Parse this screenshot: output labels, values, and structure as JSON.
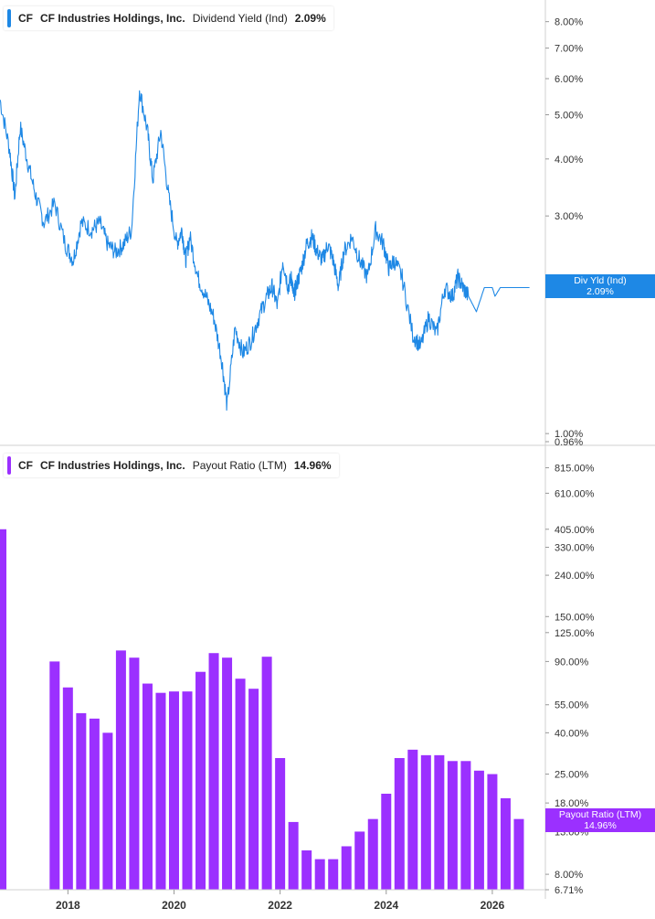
{
  "colors": {
    "yield": "#1e88e5",
    "payout": "#9b30ff",
    "grid": "#e6e6e6",
    "axis_text": "#333333"
  },
  "legend_top": {
    "ticker": "CF",
    "company": "CF Industries Holdings, Inc.",
    "metric": "Dividend Yield (Ind)",
    "value": "2.09%"
  },
  "legend_bottom": {
    "ticker": "CF",
    "company": "CF Industries Holdings, Inc.",
    "metric": "Payout Ratio (LTM)",
    "value": "14.96%"
  },
  "tag_top": {
    "label": "Div Yld (Ind)",
    "value": "2.09%"
  },
  "tag_bottom": {
    "label": "Payout Ratio (LTM)",
    "value": "14.96%"
  },
  "chart_data": [
    {
      "type": "line",
      "scale": "log",
      "ylim": [
        0.96,
        8.6
      ],
      "xlim": [
        2016.72,
        2027.0
      ],
      "yticks": [
        "8.00%",
        "7.00%",
        "6.00%",
        "5.00%",
        "4.00%",
        "3.00%",
        "2.09%",
        "1.00%",
        "0.96%"
      ],
      "series": [
        {
          "x": [
            2016.72,
            2016.9,
            2017.0,
            2017.1,
            2017.25,
            2017.4,
            2017.55,
            2017.75,
            2017.95,
            2018.1,
            2018.25,
            2018.45,
            2018.6,
            2018.75,
            2018.9,
            2019.05,
            2019.2,
            2019.35,
            2019.5,
            2019.6,
            2019.75,
            2019.9,
            2020.05,
            2020.15,
            2020.22,
            2020.3,
            2020.45,
            2020.6,
            2020.75,
            2020.9,
            2021.0,
            2021.15,
            2021.3,
            2021.45,
            2021.6,
            2021.75,
            2021.85,
            2021.95,
            2022.05,
            2022.15,
            2022.22,
            2022.25,
            2022.3,
            2022.4,
            2022.5,
            2022.6,
            2022.7,
            2022.8,
            2022.9,
            2023.0,
            2023.1,
            2023.2,
            2023.35,
            2023.5,
            2023.65,
            2023.8,
            2023.95,
            2024.05,
            2024.15,
            2024.3,
            2024.5,
            2024.65,
            2024.8,
            2024.95,
            2025.1,
            2025.25,
            2025.35,
            2025.45,
            2025.55,
            2025.7,
            2025.85,
            2026.0,
            2026.05,
            2026.15,
            2026.25,
            2026.35,
            2026.45,
            2026.55,
            2026.62,
            2026.7
          ],
          "y": [
            5.4,
            4.2,
            3.3,
            4.7,
            3.9,
            3.3,
            2.9,
            3.2,
            2.6,
            2.4,
            2.9,
            2.8,
            2.9,
            2.6,
            2.5,
            2.6,
            2.8,
            5.7,
            4.6,
            3.6,
            4.6,
            3.3,
            2.6,
            2.8,
            2.4,
            2.7,
            2.2,
            2.0,
            1.8,
            1.45,
            1.15,
            1.7,
            1.5,
            1.6,
            1.8,
            2.0,
            2.1,
            1.9,
            2.4,
            2.1,
            2.2,
            2.0,
            2.1,
            2.3,
            2.6,
            2.7,
            2.5,
            2.4,
            2.6,
            2.4,
            2.1,
            2.5,
            2.7,
            2.4,
            2.2,
            2.8,
            2.6,
            2.3,
            2.4,
            2.2,
            1.65,
            1.55,
            1.8,
            1.65,
            2.09,
            2.0,
            2.2,
            2.09,
            2.0,
            1.85,
            2.09,
            2.09,
            2.0,
            2.09,
            2.09,
            2.09,
            2.09,
            2.09,
            2.09,
            2.09
          ]
        }
      ]
    },
    {
      "type": "bar",
      "scale": "log",
      "ylim": [
        6.71,
        900
      ],
      "xlim": [
        2016.72,
        2027.0
      ],
      "yticks": [
        "815.00%",
        "610.00%",
        "405.00%",
        "330.00%",
        "240.00%",
        "150.00%",
        "125.00%",
        "90.00%",
        "55.00%",
        "40.00%",
        "25.00%",
        "18.00%",
        "14.96%",
        "13.00%",
        "8.00%",
        "6.71%"
      ],
      "x": [
        2016.75,
        2017.75,
        2018.0,
        2018.25,
        2018.5,
        2018.75,
        2019.0,
        2019.25,
        2019.5,
        2019.75,
        2020.0,
        2020.25,
        2020.5,
        2020.75,
        2021.0,
        2021.25,
        2021.5,
        2021.75,
        2022.0,
        2022.25,
        2022.5,
        2022.75,
        2023.0,
        2023.25,
        2023.5,
        2023.75,
        2024.0,
        2024.25,
        2024.5,
        2024.75,
        2025.0,
        2025.25,
        2025.5,
        2025.75,
        2026.0,
        2026.25,
        2026.5
      ],
      "values": [
        405.0,
        90.0,
        67.0,
        50.0,
        47.0,
        40.0,
        102.0,
        94.0,
        70.0,
        63.0,
        64.0,
        64.0,
        80.0,
        99.0,
        94.0,
        74.0,
        66.0,
        95.0,
        30.0,
        14.5,
        10.5,
        9.5,
        9.5,
        11.0,
        13.0,
        15.0,
        20.0,
        30.0,
        33.0,
        31.0,
        31.0,
        29.0,
        29.0,
        26.0,
        25.0,
        19.0,
        15.0
      ],
      "xticks": [
        "2018",
        "2020",
        "2022",
        "2024",
        "2026"
      ]
    }
  ]
}
